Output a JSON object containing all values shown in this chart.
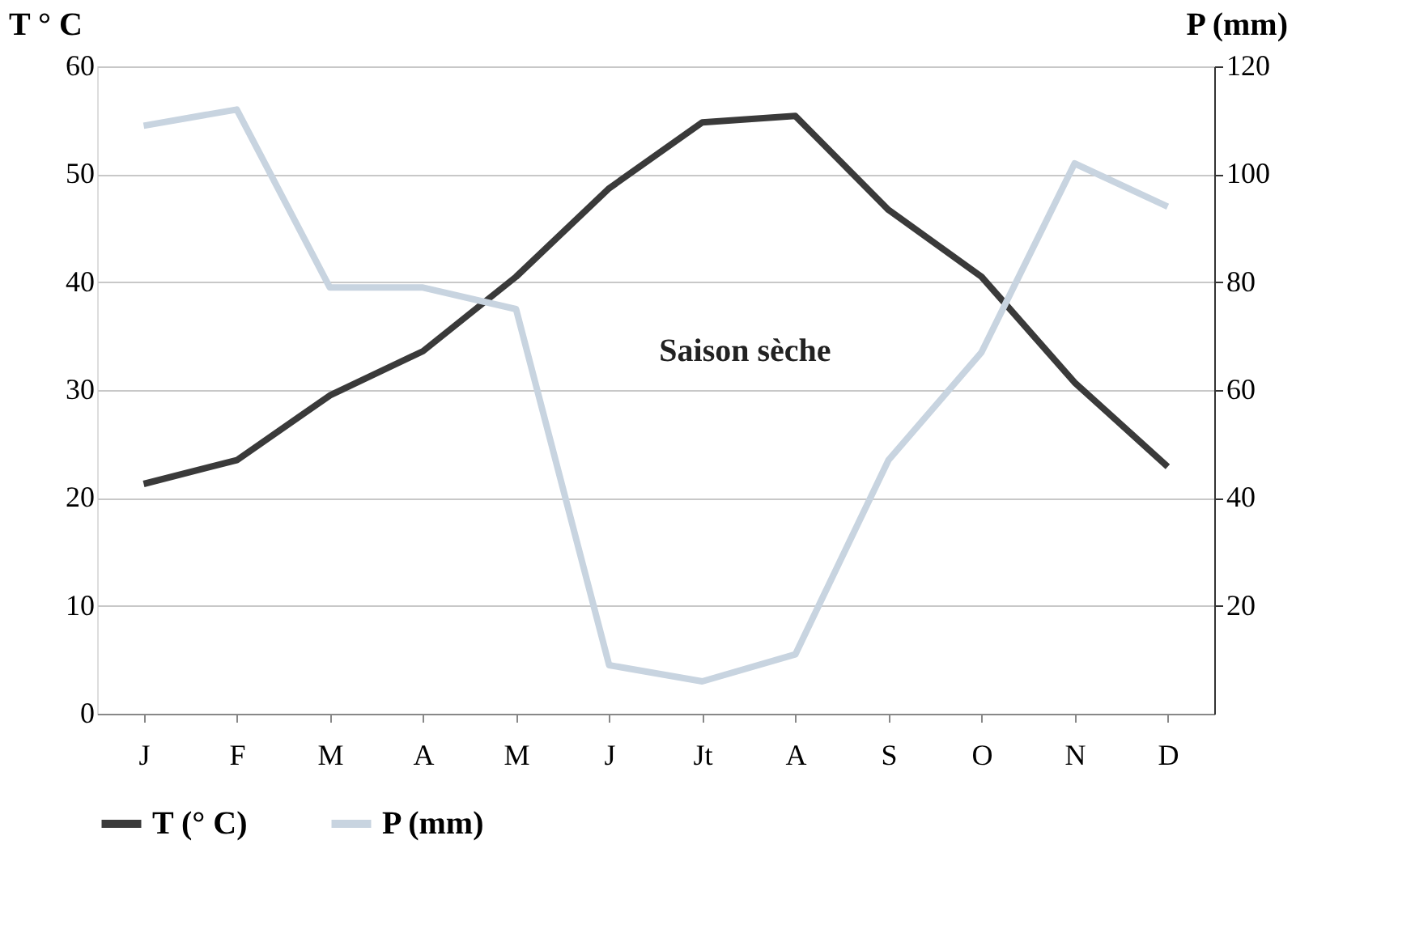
{
  "chart_data": {
    "type": "line",
    "ylabel": "T ° C",
    "y2label": "P (mm)",
    "categories": [
      "J",
      "F",
      "M",
      "A",
      "M",
      "J",
      "Jt",
      "A",
      "S",
      "O",
      "N",
      "D"
    ],
    "series": [
      {
        "name": "T (° C)",
        "color": "#3a3a3a",
        "values": [
          21.3,
          23.5,
          29.5,
          33.6,
          40.5,
          48.7,
          54.8,
          55.4,
          46.7,
          40.5,
          30.7,
          22.9
        ]
      },
      {
        "name": "P (mm)",
        "color": "#c8d4e0",
        "axis": "y2",
        "values": [
          109,
          112,
          79,
          79,
          75,
          9,
          6,
          11,
          47,
          67,
          102,
          94
        ]
      }
    ],
    "ylim": [
      0,
      60
    ],
    "yticks": [
      0,
      10,
      20,
      30,
      40,
      50,
      60
    ],
    "y2lim": [
      0,
      120
    ],
    "y2ticks": [
      20,
      40,
      60,
      80,
      100,
      120
    ],
    "annotations": [
      "Saison sèche"
    ],
    "grid": "y",
    "legend": "bottom"
  }
}
